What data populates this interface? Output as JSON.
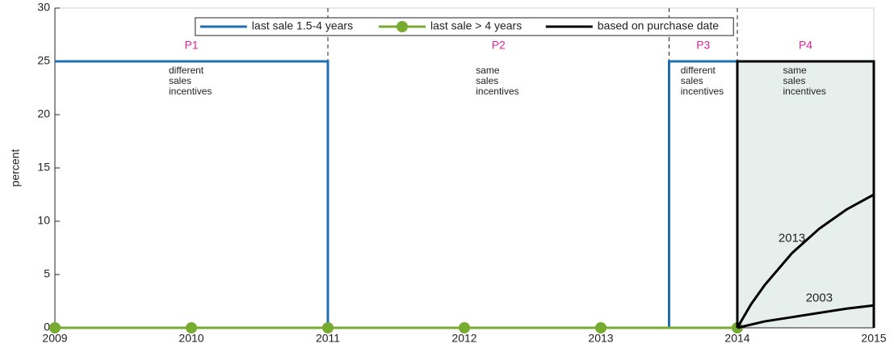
{
  "chart_data": {
    "type": "line",
    "ylabel": "percent",
    "xlim": [
      2009,
      2015
    ],
    "xticks": [
      2009,
      2010,
      2011,
      2012,
      2013,
      2014,
      2015
    ],
    "ylim": [
      0,
      30
    ],
    "yticks": [
      0,
      5,
      10,
      15,
      20,
      25,
      30
    ],
    "legend": "upper center",
    "series": [
      {
        "name": "last sale 1.5-4 years",
        "color": "#1f6fb4",
        "x": [
          2009,
          2011,
          2011,
          2013.5,
          2013.5,
          2014
        ],
        "values": [
          25,
          25,
          0,
          0,
          25,
          25
        ]
      },
      {
        "name": "last sale > 4 years",
        "color": "#77ac30",
        "markers": true,
        "x": [
          2009,
          2010,
          2011,
          2012,
          2013,
          2014
        ],
        "values": [
          0,
          0,
          0,
          0,
          0,
          0
        ]
      },
      {
        "name": "based on purchase date",
        "color": "#000000",
        "fill": "#e7efec",
        "x": [
          2014,
          2014,
          2015,
          2015
        ],
        "values": [
          0,
          25,
          25,
          0
        ]
      }
    ],
    "curves": [
      {
        "name": "2013",
        "color": "#000000",
        "x": [
          2014,
          2014.1,
          2014.2,
          2014.4,
          2014.6,
          2014.8,
          2015
        ],
        "values": [
          0,
          2.2,
          4.0,
          7.0,
          9.3,
          11.1,
          12.5
        ]
      },
      {
        "name": "2003",
        "color": "#000000",
        "x": [
          2014,
          2014.2,
          2014.4,
          2014.6,
          2014.8,
          2015
        ],
        "values": [
          0,
          0.6,
          1.0,
          1.4,
          1.8,
          2.1
        ]
      }
    ],
    "periods": [
      {
        "label": "P1",
        "text": [
          "different",
          "sales",
          "incentives"
        ],
        "start": 2009,
        "end": 2011
      },
      {
        "label": "P2",
        "text": [
          "same",
          "sales",
          "incentives"
        ],
        "start": 2011,
        "end": 2013.5
      },
      {
        "label": "P3",
        "text": [
          "different",
          "sales",
          "incentives"
        ],
        "start": 2013.5,
        "end": 2014
      },
      {
        "label": "P4",
        "text": [
          "same",
          "sales",
          "incentives"
        ],
        "start": 2014,
        "end": 2015
      }
    ]
  }
}
